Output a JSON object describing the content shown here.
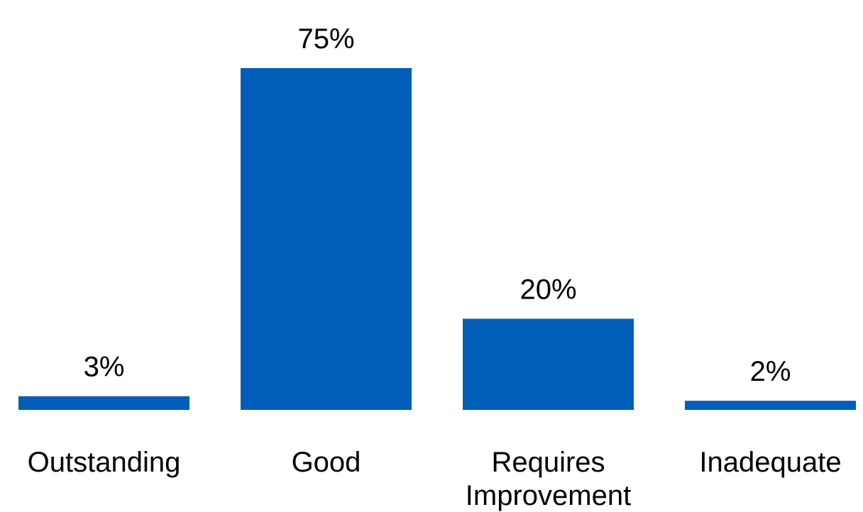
{
  "chart_data": {
    "type": "bar",
    "categories": [
      [
        "Outstanding"
      ],
      [
        "Good"
      ],
      [
        "Requires",
        "Improvement"
      ],
      [
        "Inadequate"
      ]
    ],
    "values": [
      3,
      75,
      20,
      2
    ],
    "data_labels": [
      "3%",
      "75%",
      "20%",
      "2%"
    ],
    "unit": "%",
    "ylim": [
      0,
      75
    ],
    "grid": false,
    "legend": "none",
    "bar_color": "#005EB8"
  }
}
